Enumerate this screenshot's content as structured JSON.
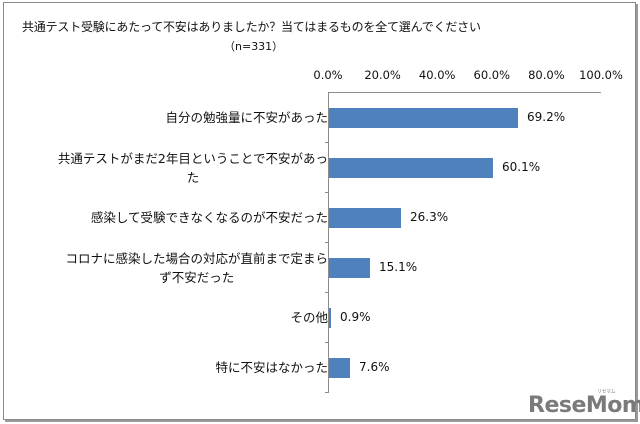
{
  "title": "共通テスト受験にあたって不安はありましたか？当てはまるものを全て選んでください",
  "subtitle": "（n=331）",
  "axis": {
    "ticks": [
      "0.0%",
      "20.0%",
      "40.0%",
      "60.0%",
      "80.0%",
      "100.0%"
    ]
  },
  "rows": [
    {
      "label_line1": "自分の勉強量に不安があった",
      "label_line2": "",
      "value": 69.2,
      "value_label": "69.2%"
    },
    {
      "label_line1": "共通テストがまだ2年目ということで不安があっ",
      "label_line2": "た",
      "value": 60.1,
      "value_label": "60.1%"
    },
    {
      "label_line1": "感染して受験できなくなるのが不安だった",
      "label_line2": "",
      "value": 26.3,
      "value_label": "26.3%"
    },
    {
      "label_line1": "コロナに感染した場合の対応が直前まで定まら",
      "label_line2": "ず不安だった",
      "value": 15.1,
      "value_label": "15.1%"
    },
    {
      "label_line1": "その他",
      "label_line2": "",
      "value": 0.9,
      "value_label": "0.9%"
    },
    {
      "label_line1": "特に不安はなかった",
      "label_line2": "",
      "value": 7.6,
      "value_label": "7.6%"
    }
  ],
  "watermark": {
    "text": "ReseMom",
    "ruby": "リセマム"
  },
  "colors": {
    "bar": "#4f81bd",
    "axis": "#8c8c8c"
  },
  "chart_data": {
    "type": "bar",
    "orientation": "horizontal",
    "title": "共通テスト受験にあたって不安はありましたか？当てはまるものを全て選んでください",
    "subtitle": "（n=331）",
    "categories": [
      "自分の勉強量に不安があった",
      "共通テストがまだ2年目ということで不安があった",
      "感染して受験できなくなるのが不安だった",
      "コロナに感染した場合の対応が直前まで定まらず不安だった",
      "その他",
      "特に不安はなかった"
    ],
    "values": [
      69.2,
      60.1,
      26.3,
      15.1,
      0.9,
      7.6
    ],
    "xlabel": "",
    "ylabel": "",
    "xlim": [
      0,
      100
    ],
    "x_tick_labels": [
      "0.0%",
      "20.0%",
      "40.0%",
      "60.0%",
      "80.0%",
      "100.0%"
    ],
    "axis_position": "top",
    "grid": false,
    "legend": null,
    "data_labels": true
  }
}
